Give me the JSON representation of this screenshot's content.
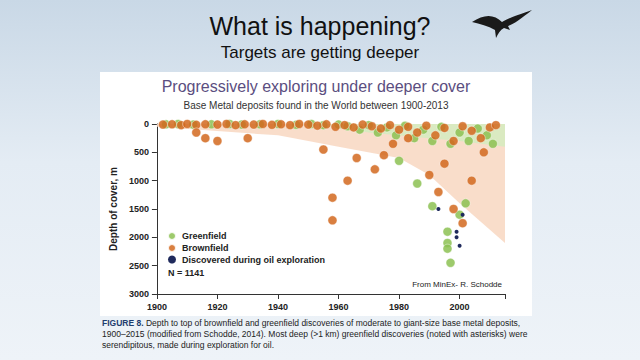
{
  "slide": {
    "title": "What is happening?",
    "subtitle": "Targets are getting deeper"
  },
  "chart_data": {
    "type": "scatter",
    "title": "Progressively exploring under deeper cover",
    "subtitle": "Base Metal deposits found in the World between 1900-2013",
    "y_label": "Depth of cover, m",
    "xlim": [
      1900,
      2015
    ],
    "xticks": [
      1900,
      1920,
      1940,
      1960,
      1980,
      2000
    ],
    "ylim": [
      3000,
      0
    ],
    "yticks": [
      0,
      500,
      1000,
      1500,
      2000,
      2500,
      3000
    ],
    "legend": "lower left",
    "annotations": [
      "N = 1141",
      "From MinEx- R. Schodde"
    ],
    "areas": [
      {
        "color": "#f8d9c4",
        "x": [
          1900,
          1940,
          1960,
          1980,
          1990,
          2000,
          2015
        ],
        "values": [
          50,
          200,
          400,
          600,
          900,
          1400,
          2100
        ]
      },
      {
        "color": "#d6ebc0",
        "x": [
          1950,
          1970,
          1990,
          2000,
          2015
        ],
        "values": [
          0,
          150,
          250,
          300,
          400
        ]
      }
    ],
    "series": [
      {
        "name": "Greenfield",
        "color": "#8cc152",
        "marker": "circle",
        "x": [
          1903,
          1907,
          1912,
          1918,
          1924,
          1928,
          1934,
          1940,
          1946,
          1951,
          1955,
          1960,
          1963,
          1967,
          1970,
          1973,
          1976,
          1979,
          1982,
          1985,
          1988,
          1991,
          1994,
          1997,
          2000,
          2003,
          2006,
          2009,
          2011,
          1996,
          1996,
          1996,
          1997,
          1991,
          1986,
          1980,
          2002,
          2000
        ],
        "values": [
          5,
          0,
          10,
          5,
          0,
          10,
          5,
          0,
          15,
          0,
          20,
          10,
          40,
          100,
          20,
          150,
          60,
          200,
          30,
          250,
          100,
          300,
          50,
          350,
          150,
          300,
          80,
          200,
          350,
          1900,
          2100,
          2200,
          2450,
          1450,
          1050,
          650,
          1400,
          1600
        ]
      },
      {
        "name": "Brownfield",
        "color": "#d2691e",
        "marker": "circle",
        "x": [
          1902,
          1905,
          1908,
          1910,
          1913,
          1916,
          1920,
          1923,
          1926,
          1929,
          1932,
          1935,
          1938,
          1941,
          1944,
          1947,
          1950,
          1953,
          1956,
          1959,
          1962,
          1965,
          1968,
          1971,
          1974,
          1977,
          1980,
          1983,
          1986,
          1989,
          1992,
          1995,
          1998,
          2001,
          2004,
          2007,
          2010,
          2012,
          1913,
          1916,
          1920,
          1930,
          1955,
          1958,
          1958,
          1963,
          1966,
          1972,
          1975,
          1983,
          1990,
          1993,
          1995,
          1998,
          2001,
          2004,
          2008,
          1978
        ],
        "values": [
          10,
          5,
          20,
          0,
          15,
          5,
          10,
          0,
          20,
          5,
          10,
          0,
          15,
          5,
          20,
          0,
          10,
          30,
          5,
          50,
          20,
          60,
          10,
          40,
          80,
          20,
          100,
          50,
          150,
          30,
          200,
          70,
          300,
          40,
          120,
          250,
          60,
          20,
          150,
          250,
          300,
          250,
          450,
          1300,
          1700,
          1000,
          600,
          800,
          550,
          250,
          900,
          1200,
          700,
          1500,
          1750,
          1000,
          500,
          350
        ]
      },
      {
        "name": "Discovered during oil exploration",
        "color": "#1f2a5c",
        "marker": "dot",
        "x": [
          1993,
          1999,
          1999,
          2000,
          2001
        ],
        "values": [
          1500,
          1900,
          2000,
          2150,
          1600
        ]
      }
    ]
  },
  "caption": {
    "label": "FIGURE 8.",
    "text": "Depth to top of brownfield and greenfield discoveries of moderate to giant-size base metal deposits, 1900–2015 (modified from Schodde, 2014). Most deep (>1 km) greenfield discoveries (noted with asterisks) were serendipitous, made during exploration for oil."
  }
}
